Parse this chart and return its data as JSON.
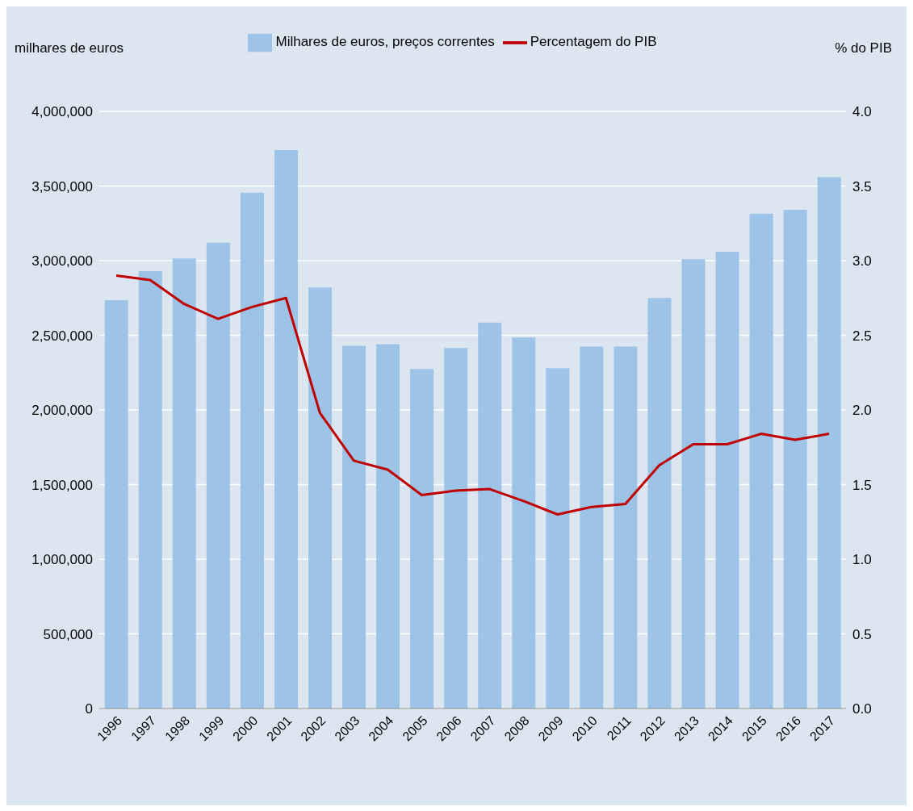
{
  "chart_data": {
    "type": "bar",
    "ylabel": "milhares de euros",
    "y2label": "% do PIB",
    "categories": [
      "1996",
      "1997",
      "1998",
      "1999",
      "2000",
      "2001",
      "2002",
      "2003",
      "2004",
      "2005",
      "2006",
      "2007",
      "2008",
      "2009",
      "2010",
      "2011",
      "2012",
      "2013",
      "2014",
      "2015",
      "2016",
      "2017"
    ],
    "series": [
      {
        "name": "Milhares de euros, preços correntes",
        "color": "#9dc3e6",
        "values": [
          2735000,
          2930000,
          3015000,
          3120000,
          3455000,
          3740000,
          2820000,
          2430000,
          2440000,
          2275000,
          2415000,
          2585000,
          2485000,
          2280000,
          2425000,
          2425000,
          2750000,
          3010000,
          3060000,
          3315000,
          3340000,
          3560000
        ]
      },
      {
        "name": "Percentagem do PIB",
        "type": "line",
        "axis": "y2",
        "color": "#c00000",
        "values": [
          2.9,
          2.87,
          2.71,
          2.61,
          2.69,
          2.75,
          1.98,
          1.66,
          1.6,
          1.43,
          1.46,
          1.47,
          1.39,
          1.3,
          1.35,
          1.37,
          1.63,
          1.77,
          1.77,
          1.84,
          1.8,
          1.84
        ]
      }
    ],
    "ylim": [
      0,
      4000000
    ],
    "yticks": [
      {
        "value": 0,
        "label": "0"
      },
      {
        "value": 500000,
        "label": "500,000"
      },
      {
        "value": 1000000,
        "label": "1,000,000"
      },
      {
        "value": 1500000,
        "label": "1,500,000"
      },
      {
        "value": 2000000,
        "label": "2,000,000"
      },
      {
        "value": 2500000,
        "label": "2,500,000"
      },
      {
        "value": 3000000,
        "label": "3,000,000"
      },
      {
        "value": 3500000,
        "label": "3,500,000"
      },
      {
        "value": 4000000,
        "label": "4,000,000"
      }
    ],
    "y2lim": [
      0,
      4
    ],
    "y2ticks": [
      {
        "value": 0,
        "label": "0.0"
      },
      {
        "value": 0.5,
        "label": "0.5"
      },
      {
        "value": 1,
        "label": "1.0"
      },
      {
        "value": 1.5,
        "label": "1.5"
      },
      {
        "value": 2,
        "label": "2.0"
      },
      {
        "value": 2.5,
        "label": "2.5"
      },
      {
        "value": 3,
        "label": "3.0"
      },
      {
        "value": 3.5,
        "label": "3.5"
      },
      {
        "value": 4,
        "label": "4.0"
      }
    ],
    "grid": "y",
    "legend": "top",
    "marker": "none",
    "line_style": "solid"
  }
}
